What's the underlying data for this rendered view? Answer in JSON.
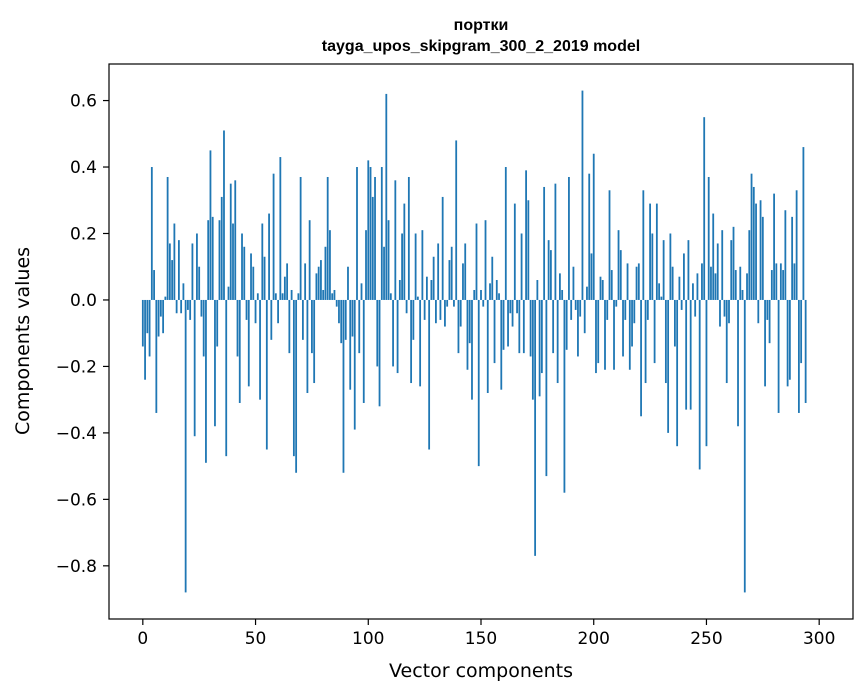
{
  "chart_data": {
    "type": "bar",
    "title": "портки",
    "subtitle": "tayga_upos_skipgram_300_2_2019 model",
    "xlabel": "Vector components",
    "ylabel": "Components values",
    "xlim": [
      -15,
      315
    ],
    "ylim": [
      -0.96,
      0.71
    ],
    "x_ticks": [
      0,
      50,
      100,
      150,
      200,
      250,
      300
    ],
    "x_tick_labels": [
      "0",
      "50",
      "100",
      "150",
      "200",
      "250",
      "300"
    ],
    "y_ticks": [
      -0.8,
      -0.6,
      -0.4,
      -0.2,
      0.0,
      0.2,
      0.4,
      0.6
    ],
    "y_tick_labels": [
      "−0.8",
      "−0.6",
      "−0.4",
      "−0.2",
      "0.0",
      "0.2",
      "0.4",
      "0.6"
    ],
    "bar_color": "#1f77b4",
    "values": [
      -0.14,
      -0.24,
      -0.1,
      -0.17,
      0.4,
      0.09,
      -0.34,
      -0.11,
      -0.05,
      -0.1,
      0.01,
      0.37,
      0.17,
      0.12,
      0.23,
      -0.04,
      0.18,
      -0.04,
      0.05,
      -0.88,
      -0.03,
      -0.06,
      0.17,
      -0.41,
      0.2,
      0.1,
      -0.05,
      -0.17,
      -0.49,
      0.24,
      0.45,
      0.25,
      -0.38,
      -0.14,
      0.24,
      0.31,
      0.51,
      -0.47,
      0.04,
      0.35,
      0.23,
      0.36,
      -0.17,
      -0.31,
      0.2,
      0.16,
      -0.06,
      -0.26,
      0.14,
      0.1,
      -0.07,
      0.02,
      -0.3,
      0.23,
      0.13,
      -0.45,
      0.26,
      -0.12,
      0.38,
      0.02,
      -0.07,
      0.43,
      0.02,
      0.07,
      0.11,
      -0.16,
      0.03,
      -0.47,
      -0.52,
      0.02,
      0.37,
      -0.12,
      0.11,
      -0.28,
      0.24,
      -0.16,
      -0.25,
      0.08,
      0.1,
      0.12,
      0.03,
      0.16,
      0.37,
      0.21,
      0.02,
      0.03,
      -0.02,
      -0.07,
      -0.13,
      -0.52,
      -0.12,
      0.1,
      -0.27,
      -0.11,
      -0.39,
      0.4,
      -0.16,
      0.05,
      -0.31,
      0.21,
      0.42,
      0.4,
      0.31,
      0.37,
      -0.2,
      -0.32,
      0.4,
      0.16,
      0.62,
      0.24,
      0.02,
      -0.2,
      0.36,
      -0.22,
      0.06,
      0.2,
      0.29,
      -0.04,
      0.37,
      -0.25,
      -0.12,
      0.2,
      0.01,
      -0.26,
      0.21,
      -0.06,
      0.07,
      -0.45,
      0.06,
      0.13,
      -0.07,
      0.17,
      -0.06,
      0.31,
      -0.08,
      -0.02,
      0.12,
      0.16,
      -0.02,
      0.48,
      -0.16,
      -0.08,
      0.11,
      0.17,
      -0.21,
      -0.13,
      -0.3,
      0.03,
      0.23,
      -0.5,
      0.03,
      -0.02,
      0.24,
      -0.28,
      0.05,
      0.13,
      -0.19,
      0.06,
      0.02,
      -0.27,
      -0.15,
      0.4,
      -0.14,
      -0.04,
      -0.08,
      0.29,
      -0.04,
      -0.16,
      0.2,
      -0.16,
      0.39,
      0.3,
      -0.17,
      -0.3,
      -0.77,
      0.06,
      -0.29,
      -0.22,
      0.34,
      -0.53,
      0.18,
      0.15,
      -0.16,
      0.35,
      -0.25,
      0.08,
      0.03,
      -0.58,
      -0.15,
      0.37,
      -0.06,
      0.1,
      -0.03,
      -0.17,
      -0.05,
      0.63,
      -0.1,
      0.04,
      0.38,
      0.14,
      0.44,
      -0.22,
      -0.19,
      0.07,
      0.06,
      -0.21,
      -0.06,
      0.33,
      0.09,
      -0.21,
      -0.02,
      0.21,
      0.15,
      -0.17,
      -0.06,
      0.11,
      -0.21,
      -0.14,
      -0.07,
      0.1,
      0.11,
      -0.35,
      0.33,
      -0.25,
      -0.06,
      0.29,
      0.2,
      -0.19,
      0.29,
      0.05,
      0.01,
      0.18,
      -0.25,
      -0.4,
      0.2,
      0.1,
      -0.14,
      -0.44,
      0.07,
      -0.03,
      0.14,
      -0.33,
      0.18,
      -0.33,
      0.05,
      -0.05,
      0.08,
      -0.51,
      0.11,
      0.55,
      -0.44,
      0.37,
      0.1,
      0.26,
      0.08,
      0.17,
      -0.08,
      0.21,
      -0.05,
      -0.25,
      -0.07,
      0.18,
      0.22,
      0.09,
      -0.38,
      0.1,
      0.03,
      -0.88,
      0.08,
      0.21,
      0.38,
      0.34,
      0.29,
      -0.07,
      0.3,
      0.25,
      -0.26,
      -0.06,
      -0.13,
      0.09,
      0.32,
      0.11,
      -0.34,
      0.11,
      0.09,
      0.27,
      -0.26,
      -0.24,
      0.25,
      0.11,
      0.33,
      -0.34,
      -0.19,
      0.46,
      -0.31
    ]
  }
}
